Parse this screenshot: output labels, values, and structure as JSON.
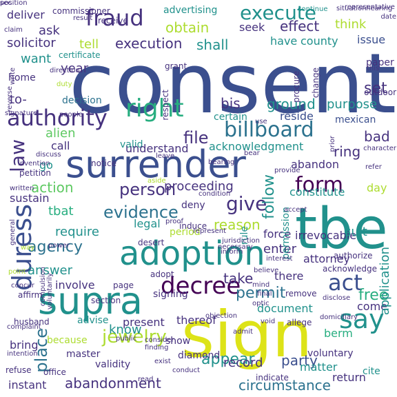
{
  "palette": {
    "navy": "#3b4f8e",
    "indigo": "#46327e",
    "purple": "#440154",
    "blue": "#2c728e",
    "teal": "#21918c",
    "green": "#28ae80",
    "lime": "#5ec962",
    "light_green": "#addc30",
    "yellow": "#dde318"
  },
  "words": [
    {
      "text": "consent",
      "color": "navy",
      "orient": "h"
    },
    {
      "text": "sign",
      "color": "yellow",
      "orient": "h"
    },
    {
      "text": "tbe",
      "color": "teal",
      "orient": "h"
    },
    {
      "text": "surrender",
      "color": "navy",
      "orient": "h"
    },
    {
      "text": "adoption",
      "color": "teal",
      "orient": "h"
    },
    {
      "text": "supra",
      "color": "teal",
      "orient": "h"
    },
    {
      "text": "billboard",
      "color": "blue",
      "orient": "h"
    },
    {
      "text": "duress",
      "color": "navy",
      "orient": "v"
    },
    {
      "text": "right",
      "color": "green",
      "orient": "h"
    },
    {
      "text": "fraud",
      "color": "indigo",
      "orient": "h"
    },
    {
      "text": "execute",
      "color": "teal",
      "orient": "h"
    },
    {
      "text": "authority",
      "color": "indigo",
      "orient": "h"
    },
    {
      "text": "decree",
      "color": "purple",
      "orient": "h"
    },
    {
      "text": "say",
      "color": "teal",
      "orient": "h"
    },
    {
      "text": "form",
      "color": "purple",
      "orient": "h"
    },
    {
      "text": "law",
      "color": "indigo",
      "orient": "v"
    },
    {
      "text": "act",
      "color": "navy",
      "orient": "h"
    },
    {
      "text": "place",
      "color": "blue",
      "orient": "v"
    },
    {
      "text": "jewelry",
      "color": "light_green",
      "orient": "h"
    },
    {
      "text": "give",
      "color": "indigo",
      "orient": "h"
    },
    {
      "text": "obtain",
      "color": "light_green",
      "orient": "h"
    },
    {
      "text": "follow",
      "color": "teal",
      "orient": "v"
    },
    {
      "text": "appear",
      "color": "teal",
      "orient": "h"
    },
    {
      "text": "abandonment",
      "color": "indigo",
      "orient": "h"
    },
    {
      "text": "permit",
      "color": "blue",
      "orient": "h"
    },
    {
      "text": "record",
      "color": "indigo",
      "orient": "h"
    },
    {
      "text": "evidence",
      "color": "blue",
      "orient": "h"
    },
    {
      "text": "action",
      "color": "lime",
      "orient": "h"
    },
    {
      "text": "effect",
      "color": "indigo",
      "orient": "h"
    },
    {
      "text": "execution",
      "color": "indigo",
      "orient": "h"
    },
    {
      "text": "circumstance",
      "color": "blue",
      "orient": "h"
    },
    {
      "text": "party",
      "color": "navy",
      "orient": "h"
    },
    {
      "text": "free",
      "color": "green",
      "orient": "h"
    },
    {
      "text": "know",
      "color": "teal",
      "orient": "h"
    },
    {
      "text": "take",
      "color": "indigo",
      "orient": "h"
    },
    {
      "text": "file",
      "color": "indigo",
      "orient": "h"
    },
    {
      "text": "person",
      "color": "indigo",
      "orient": "h"
    },
    {
      "text": "agency",
      "color": "blue",
      "orient": "h"
    },
    {
      "text": "reason",
      "color": "light_green",
      "orient": "h"
    },
    {
      "text": "purpose",
      "color": "teal",
      "orient": "h"
    },
    {
      "text": "ground",
      "color": "teal",
      "orient": "h"
    },
    {
      "text": "answer",
      "color": "teal",
      "orient": "h"
    },
    {
      "text": "require",
      "color": "teal",
      "orient": "h"
    },
    {
      "text": "proceeding",
      "color": "indigo",
      "orient": "h"
    },
    {
      "text": "alien",
      "color": "lime",
      "orient": "h"
    },
    {
      "text": "ring",
      "color": "indigo",
      "orient": "h"
    },
    {
      "text": "bad",
      "color": "indigo",
      "orient": "h"
    },
    {
      "text": "set",
      "color": "indigo",
      "orient": "h"
    },
    {
      "text": "bis",
      "color": "indigo",
      "orient": "h"
    },
    {
      "text": "shall",
      "color": "teal",
      "orient": "h"
    },
    {
      "text": "solicitor",
      "color": "indigo",
      "orient": "h"
    },
    {
      "text": "ask",
      "color": "indigo",
      "orient": "h"
    },
    {
      "text": "tell",
      "color": "light_green",
      "orient": "h"
    },
    {
      "text": "want",
      "color": "teal",
      "orient": "h"
    },
    {
      "text": "year",
      "color": "indigo",
      "orient": "h"
    },
    {
      "text": "to-",
      "color": "indigo",
      "orient": "h"
    },
    {
      "text": "deliver",
      "color": "indigo",
      "orient": "h"
    },
    {
      "text": "advertising",
      "color": "teal",
      "orient": "h"
    },
    {
      "text": "think",
      "color": "light_green",
      "orient": "h"
    },
    {
      "text": "have",
      "color": "teal",
      "orient": "h"
    },
    {
      "text": "seek",
      "color": "indigo",
      "orient": "h"
    },
    {
      "text": "issue",
      "color": "navy",
      "orient": "h"
    },
    {
      "text": "county",
      "color": "teal",
      "orient": "h"
    },
    {
      "text": "home",
      "color": "indigo",
      "orient": "h"
    },
    {
      "text": "decision",
      "color": "blue",
      "orient": "h"
    },
    {
      "text": "valid",
      "color": "teal",
      "orient": "h"
    },
    {
      "text": "reside",
      "color": "navy",
      "orient": "h"
    },
    {
      "text": "certain",
      "color": "teal",
      "orient": "h"
    },
    {
      "text": "mexican",
      "color": "navy",
      "orient": "h"
    },
    {
      "text": "acknowledgment",
      "color": "teal",
      "orient": "h"
    },
    {
      "text": "understand",
      "color": "indigo",
      "orient": "h"
    },
    {
      "text": "call",
      "color": "indigo",
      "orient": "h"
    },
    {
      "text": "go",
      "color": "teal",
      "orient": "h"
    },
    {
      "text": "abandon",
      "color": "indigo",
      "orient": "h"
    },
    {
      "text": "constitute",
      "color": "teal",
      "orient": "h"
    },
    {
      "text": "day",
      "color": "light_green",
      "orient": "h"
    },
    {
      "text": "sustain",
      "color": "indigo",
      "orient": "h"
    },
    {
      "text": "tbat",
      "color": "green",
      "orient": "h"
    },
    {
      "text": "deny",
      "color": "indigo",
      "orient": "h"
    },
    {
      "text": "irrevocable",
      "color": "indigo",
      "orient": "h"
    },
    {
      "text": "suit",
      "color": "teal",
      "orient": "h"
    },
    {
      "text": "legal",
      "color": "teal",
      "orient": "h"
    },
    {
      "text": "force",
      "color": "indigo",
      "orient": "h"
    },
    {
      "text": "period",
      "color": "light_green",
      "orient": "h"
    },
    {
      "text": "attorney",
      "color": "indigo",
      "orient": "h"
    },
    {
      "text": "enter",
      "color": "indigo",
      "orient": "h"
    },
    {
      "text": "there",
      "color": "indigo",
      "orient": "h"
    },
    {
      "text": "involve",
      "color": "indigo",
      "orient": "h"
    },
    {
      "text": "signing",
      "color": "indigo",
      "orient": "h"
    },
    {
      "text": "present",
      "color": "indigo",
      "orient": "h"
    },
    {
      "text": "document",
      "color": "teal",
      "orient": "h"
    },
    {
      "text": "come",
      "color": "indigo",
      "orient": "h"
    },
    {
      "text": "berm",
      "color": "green",
      "orient": "h"
    },
    {
      "text": "thereof",
      "color": "indigo",
      "orient": "h"
    },
    {
      "text": "advise",
      "color": "teal",
      "orient": "h"
    },
    {
      "text": "because",
      "color": "light_green",
      "orient": "h"
    },
    {
      "text": "bring",
      "color": "indigo",
      "orient": "h"
    },
    {
      "text": "show",
      "color": "indigo",
      "orient": "h"
    },
    {
      "text": "master",
      "color": "indigo",
      "orient": "h"
    },
    {
      "text": "validity",
      "color": "indigo",
      "orient": "h"
    },
    {
      "text": "diamond",
      "color": "indigo",
      "orient": "h"
    },
    {
      "text": "instant",
      "color": "indigo",
      "orient": "h"
    },
    {
      "text": "matter",
      "color": "teal",
      "orient": "h"
    },
    {
      "text": "voluntary",
      "color": "indigo",
      "orient": "h"
    },
    {
      "text": "return",
      "color": "indigo",
      "orient": "h"
    },
    {
      "text": "cite",
      "color": "teal",
      "orient": "h"
    },
    {
      "text": "application",
      "color": "teal",
      "orient": "v"
    },
    {
      "text": "rule",
      "color": "teal",
      "orient": "v"
    },
    {
      "text": "permission",
      "color": "teal",
      "orient": "v"
    },
    {
      "text": "paper",
      "color": "indigo",
      "orient": "h"
    },
    {
      "text": "outdoor",
      "color": "indigo",
      "orient": "h"
    },
    {
      "text": "commissioner",
      "color": "indigo",
      "orient": "h"
    },
    {
      "text": "receive",
      "color": "indigo",
      "orient": "h"
    },
    {
      "text": "certificate",
      "color": "teal",
      "orient": "h"
    },
    {
      "text": "petition",
      "color": "indigo",
      "orient": "h"
    },
    {
      "text": "adopt",
      "color": "indigo",
      "orient": "h"
    },
    {
      "text": "page",
      "color": "indigo",
      "orient": "h"
    },
    {
      "text": "remove",
      "color": "indigo",
      "orient": "h"
    },
    {
      "text": "acknowledge",
      "color": "indigo",
      "orient": "h"
    },
    {
      "text": "authorize",
      "color": "indigo",
      "orient": "h"
    },
    {
      "text": "affirm",
      "color": "indigo",
      "orient": "h"
    },
    {
      "text": "section",
      "color": "indigo",
      "orient": "h"
    },
    {
      "text": "husband",
      "color": "indigo",
      "orient": "h"
    },
    {
      "text": "allege",
      "color": "indigo",
      "orient": "h"
    },
    {
      "text": "office",
      "color": "indigo",
      "orient": "h"
    },
    {
      "text": "refuse",
      "color": "indigo",
      "orient": "h"
    },
    {
      "text": "indicate",
      "color": "indigo",
      "orient": "h"
    },
    {
      "text": "induce",
      "color": "indigo",
      "orient": "h"
    },
    {
      "text": "desert",
      "color": "indigo",
      "orient": "h"
    },
    {
      "text": "notice",
      "color": "indigo",
      "orient": "h"
    },
    {
      "text": "aside",
      "color": "light_green",
      "orient": "h"
    },
    {
      "text": "leave",
      "color": "indigo",
      "orient": "h"
    },
    {
      "text": "discuss",
      "color": "indigo",
      "orient": "h"
    },
    {
      "text": "invention",
      "color": "indigo",
      "orient": "h"
    },
    {
      "text": "signature",
      "color": "indigo",
      "orient": "h"
    },
    {
      "text": "claim",
      "color": "indigo",
      "orient": "h"
    },
    {
      "text": "continue",
      "color": "teal",
      "orient": "h"
    },
    {
      "text": "situation",
      "color": "indigo",
      "orient": "h"
    },
    {
      "text": "date",
      "color": "indigo",
      "orient": "h"
    },
    {
      "text": "hearing",
      "color": "indigo",
      "orient": "h"
    },
    {
      "text": "representative",
      "color": "indigo",
      "orient": "h"
    },
    {
      "text": "this",
      "color": "indigo",
      "orient": "h"
    },
    {
      "text": "duty",
      "color": "light_green",
      "orient": "h"
    },
    {
      "text": "grant",
      "color": "indigo",
      "orient": "h"
    },
    {
      "text": "respect",
      "color": "indigo",
      "orient": "v"
    },
    {
      "text": "procure",
      "color": "indigo",
      "orient": "v"
    },
    {
      "text": "change",
      "color": "indigo",
      "orient": "v"
    },
    {
      "text": "reverse",
      "color": "indigo",
      "orient": "v"
    },
    {
      "text": "direction",
      "color": "indigo",
      "orient": "h"
    },
    {
      "text": "write",
      "color": "indigo",
      "orient": "v"
    },
    {
      "text": "result",
      "color": "indigo",
      "orient": "h"
    },
    {
      "text": "prior",
      "color": "indigo",
      "orient": "v"
    },
    {
      "text": "refer",
      "color": "indigo",
      "orient": "h"
    },
    {
      "text": "character",
      "color": "indigo",
      "orient": "h"
    },
    {
      "text": "bear",
      "color": "indigo",
      "orient": "h"
    },
    {
      "text": "bearing",
      "color": "indigo",
      "orient": "h"
    },
    {
      "text": "condition",
      "color": "indigo",
      "orient": "h"
    },
    {
      "text": "proof",
      "color": "indigo",
      "orient": "h"
    },
    {
      "text": "represent",
      "color": "indigo",
      "orient": "h"
    },
    {
      "text": "jurisdiction",
      "color": "indigo",
      "orient": "h"
    },
    {
      "text": "necessary",
      "color": "indigo",
      "orient": "h"
    },
    {
      "text": "accept",
      "color": "indigo",
      "orient": "h"
    },
    {
      "text": "provide",
      "color": "indigo",
      "orient": "h"
    },
    {
      "text": "written",
      "color": "indigo",
      "orient": "h"
    },
    {
      "text": "general",
      "color": "indigo",
      "orient": "v"
    },
    {
      "text": "way",
      "color": "light_green",
      "orient": "h"
    },
    {
      "text": "point",
      "color": "light_green",
      "orient": "h"
    },
    {
      "text": "concur",
      "color": "indigo",
      "orient": "h"
    },
    {
      "text": "power",
      "color": "indigo",
      "orient": "h"
    },
    {
      "text": "compulsion",
      "color": "indigo",
      "orient": "v"
    },
    {
      "text": "voluntarily",
      "color": "indigo",
      "orient": "v"
    },
    {
      "text": "believe",
      "color": "indigo",
      "orient": "h"
    },
    {
      "text": "mind",
      "color": "indigo",
      "orient": "h"
    },
    {
      "text": "final",
      "color": "indigo",
      "orient": "h"
    },
    {
      "text": "void",
      "color": "indigo",
      "orient": "h"
    },
    {
      "text": "disclose",
      "color": "indigo",
      "orient": "h"
    },
    {
      "text": "domiciliary",
      "color": "indigo",
      "orient": "h"
    },
    {
      "text": "complaint",
      "color": "indigo",
      "orient": "h"
    },
    {
      "text": "intention",
      "color": "indigo",
      "orient": "h"
    },
    {
      "text": "consider",
      "color": "indigo",
      "orient": "h"
    },
    {
      "text": "public",
      "color": "indigo",
      "orient": "h"
    },
    {
      "text": "finding",
      "color": "indigo",
      "orient": "h"
    },
    {
      "text": "objection",
      "color": "indigo",
      "orient": "h"
    },
    {
      "text": "admit",
      "color": "indigo",
      "orient": "h"
    },
    {
      "text": "read",
      "color": "indigo",
      "orient": "h"
    },
    {
      "text": "exist",
      "color": "indigo",
      "orient": "h"
    },
    {
      "text": "conduct",
      "color": "indigo",
      "orient": "h"
    },
    {
      "text": "inform",
      "color": "indigo",
      "orient": "h"
    },
    {
      "text": "interest",
      "color": "indigo",
      "orient": "h"
    },
    {
      "text": "use",
      "color": "indigo",
      "orient": "h"
    },
    {
      "text": "optic",
      "color": "indigo",
      "orient": "h"
    },
    {
      "text": "people",
      "color": "indigo",
      "orient": "h"
    },
    {
      "text": "sec",
      "color": "indigo",
      "orient": "h"
    },
    {
      "text": "position",
      "color": "indigo",
      "orient": "h"
    }
  ]
}
